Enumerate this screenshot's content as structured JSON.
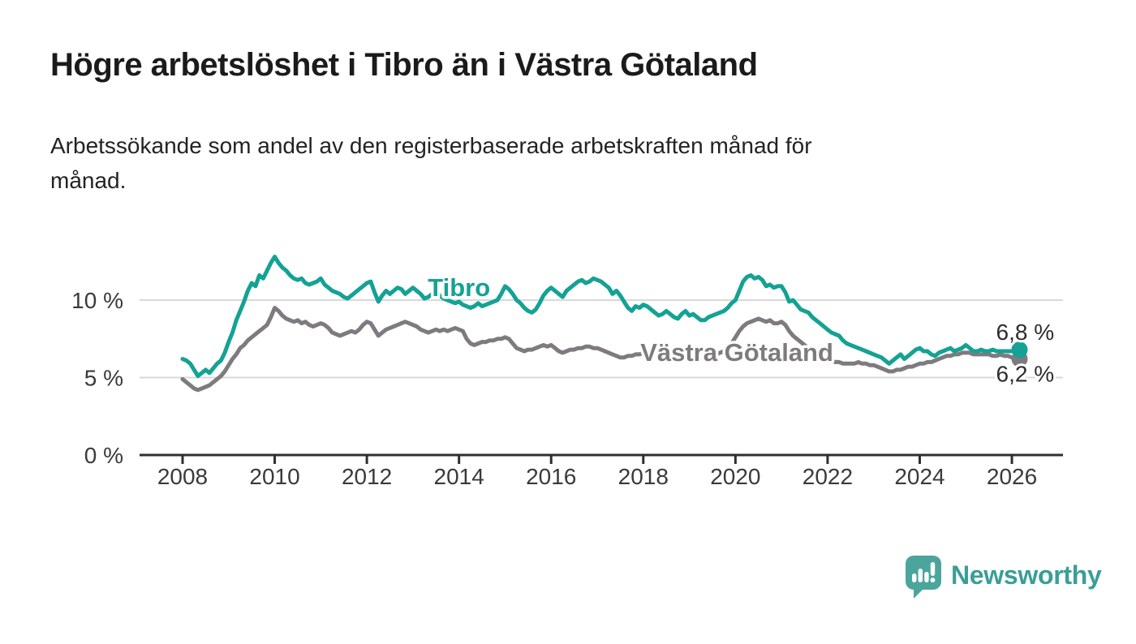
{
  "header": {
    "title": "Högre arbetslöshet i Tibro än i Västra Götaland",
    "subtitle_line1": "Arbetssökande som andel av den registerbaserade arbetskraften månad för",
    "subtitle_line2": "månad."
  },
  "brand": {
    "accent": "#14a294",
    "icon_color": "#4BA59D",
    "text_color": "#3A9E97",
    "logo_text": "Newsworthy"
  },
  "chart_data": {
    "type": "line",
    "title": "Högre arbetslöshet i Tibro än i Västra Götaland",
    "subtitle": "Arbetssökande som andel av den registerbaserade arbetskraften månad för månad.",
    "xlabel": "",
    "ylabel": "",
    "x_unit": "year",
    "x_start": 2008.0,
    "x_step_months": 1,
    "x_end_approx": 2026.17,
    "xlim": [
      2007.07,
      2027.1
    ],
    "ylim": [
      0,
      13.5
    ],
    "grid": "horizontal",
    "legend_position": "inline-labels",
    "axis_color": "#2f2f2f",
    "grid_color": "#d9d9d9",
    "tick_label_color": "#3a3a3a",
    "value_label_color": "#2d2d2d",
    "x_ticks": [
      "2008",
      "2010",
      "2012",
      "2014",
      "2016",
      "2018",
      "2020",
      "2022",
      "2024",
      "2026"
    ],
    "x_tick_years": [
      2008,
      2010,
      2012,
      2014,
      2016,
      2018,
      2020,
      2022,
      2024,
      2026
    ],
    "y_ticks": [
      {
        "value": 0,
        "label": "0 %"
      },
      {
        "value": 5,
        "label": "5 %"
      },
      {
        "value": 10,
        "label": "10 %"
      }
    ],
    "series": [
      {
        "name": "Tibro",
        "color": "#14a294",
        "end_label": "6,8 %",
        "end_label_side": "above",
        "end_dot": true,
        "label_anchor": {
          "year": 2014.0,
          "value": 10.25
        },
        "start_year": 2008.0,
        "step_months": 1,
        "values": [
          6.2,
          6.1,
          5.9,
          5.5,
          5.1,
          5.3,
          5.5,
          5.3,
          5.6,
          5.9,
          6.1,
          6.6,
          7.3,
          7.9,
          8.7,
          9.3,
          9.9,
          10.6,
          11.1,
          10.9,
          11.6,
          11.4,
          11.9,
          12.4,
          12.8,
          12.4,
          12.1,
          11.9,
          11.6,
          11.4,
          11.3,
          11.4,
          11.1,
          11.0,
          11.1,
          11.2,
          11.4,
          11.0,
          10.8,
          10.6,
          10.5,
          10.4,
          10.2,
          10.1,
          10.3,
          10.5,
          10.7,
          10.9,
          11.1,
          11.2,
          10.5,
          9.9,
          10.3,
          10.6,
          10.4,
          10.6,
          10.8,
          10.7,
          10.4,
          10.6,
          10.8,
          10.6,
          10.4,
          10.1,
          10.2,
          10.4,
          10.5,
          10.3,
          10.1,
          10.0,
          9.9,
          9.8,
          9.9,
          9.7,
          9.6,
          9.5,
          9.6,
          9.8,
          9.6,
          9.7,
          9.8,
          9.9,
          10.0,
          10.4,
          10.9,
          10.7,
          10.4,
          10.0,
          9.8,
          9.5,
          9.3,
          9.2,
          9.4,
          9.8,
          10.3,
          10.6,
          10.8,
          10.6,
          10.4,
          10.2,
          10.6,
          10.8,
          11.0,
          11.2,
          11.3,
          11.1,
          11.2,
          11.4,
          11.3,
          11.2,
          11.0,
          10.8,
          10.4,
          10.6,
          10.3,
          9.9,
          9.5,
          9.3,
          9.6,
          9.5,
          9.7,
          9.6,
          9.4,
          9.2,
          9.0,
          9.1,
          9.3,
          9.1,
          8.9,
          8.8,
          9.1,
          9.3,
          9.0,
          9.1,
          8.9,
          8.7,
          8.7,
          8.9,
          9.0,
          9.1,
          9.2,
          9.3,
          9.5,
          9.8,
          10.0,
          10.6,
          11.2,
          11.5,
          11.6,
          11.4,
          11.5,
          11.3,
          10.9,
          11.0,
          10.8,
          10.9,
          10.9,
          10.5,
          9.9,
          10.0,
          9.7,
          9.4,
          9.3,
          9.2,
          8.9,
          8.7,
          8.5,
          8.3,
          8.1,
          7.9,
          7.8,
          7.7,
          7.4,
          7.2,
          7.1,
          7.0,
          6.9,
          6.8,
          6.7,
          6.6,
          6.5,
          6.4,
          6.3,
          6.1,
          5.9,
          6.1,
          6.3,
          6.5,
          6.2,
          6.4,
          6.6,
          6.8,
          6.9,
          6.7,
          6.7,
          6.5,
          6.4,
          6.6,
          6.7,
          6.8,
          6.9,
          6.7,
          6.8,
          6.9,
          7.1,
          6.9,
          6.7,
          6.7,
          6.8,
          6.7,
          6.7,
          6.8,
          6.7,
          6.7,
          6.7,
          6.7,
          6.7,
          6.7,
          6.8
        ]
      },
      {
        "name": "Västra Götaland",
        "color": "#7d7b80",
        "end_label": "6,2 %",
        "end_label_side": "below",
        "end_dot": true,
        "label_anchor": {
          "year": 2020.03,
          "value": 6.08
        },
        "start_year": 2008.0,
        "step_months": 1,
        "values": [
          4.9,
          4.7,
          4.5,
          4.3,
          4.2,
          4.3,
          4.4,
          4.5,
          4.7,
          4.9,
          5.1,
          5.4,
          5.8,
          6.2,
          6.5,
          6.9,
          7.1,
          7.4,
          7.6,
          7.8,
          8.0,
          8.2,
          8.4,
          8.9,
          9.5,
          9.3,
          9.0,
          8.8,
          8.7,
          8.6,
          8.7,
          8.5,
          8.6,
          8.4,
          8.3,
          8.4,
          8.5,
          8.4,
          8.2,
          7.9,
          7.8,
          7.7,
          7.8,
          7.9,
          8.0,
          7.9,
          8.1,
          8.4,
          8.6,
          8.5,
          8.1,
          7.7,
          7.9,
          8.1,
          8.2,
          8.3,
          8.4,
          8.5,
          8.6,
          8.5,
          8.4,
          8.3,
          8.1,
          8.0,
          7.9,
          8.0,
          8.1,
          8.0,
          8.1,
          8.0,
          8.1,
          8.2,
          8.1,
          8.0,
          7.5,
          7.2,
          7.1,
          7.2,
          7.3,
          7.3,
          7.4,
          7.4,
          7.5,
          7.5,
          7.6,
          7.5,
          7.2,
          6.9,
          6.8,
          6.7,
          6.8,
          6.8,
          6.9,
          7.0,
          7.1,
          7.0,
          7.1,
          6.9,
          6.7,
          6.6,
          6.7,
          6.8,
          6.8,
          6.9,
          6.9,
          7.0,
          7.0,
          6.9,
          6.9,
          6.8,
          6.7,
          6.6,
          6.5,
          6.4,
          6.3,
          6.3,
          6.4,
          6.4,
          6.5,
          6.5,
          6.6,
          6.5,
          6.4,
          6.4,
          6.3,
          6.4,
          6.4,
          6.5,
          6.5,
          6.4,
          6.5,
          6.6,
          6.5,
          6.5,
          6.4,
          6.4,
          6.4,
          6.4,
          6.5,
          6.5,
          6.6,
          6.7,
          6.9,
          7.2,
          7.6,
          8.0,
          8.3,
          8.5,
          8.6,
          8.7,
          8.8,
          8.7,
          8.6,
          8.7,
          8.5,
          8.5,
          8.6,
          8.4,
          8.0,
          7.7,
          7.5,
          7.3,
          7.1,
          6.9,
          6.7,
          6.5,
          6.3,
          6.2,
          6.1,
          6.1,
          6.0,
          6.0,
          5.9,
          5.9,
          5.9,
          5.9,
          6.0,
          5.9,
          5.9,
          5.8,
          5.8,
          5.7,
          5.6,
          5.5,
          5.4,
          5.4,
          5.5,
          5.5,
          5.6,
          5.7,
          5.7,
          5.8,
          5.9,
          5.9,
          6.0,
          6.0,
          6.1,
          6.2,
          6.3,
          6.4,
          6.4,
          6.5,
          6.5,
          6.6,
          6.6,
          6.6,
          6.5,
          6.5,
          6.5,
          6.5,
          6.5,
          6.4,
          6.4,
          6.5,
          6.4,
          6.4,
          6.3,
          6.3,
          6.2
        ]
      }
    ]
  }
}
